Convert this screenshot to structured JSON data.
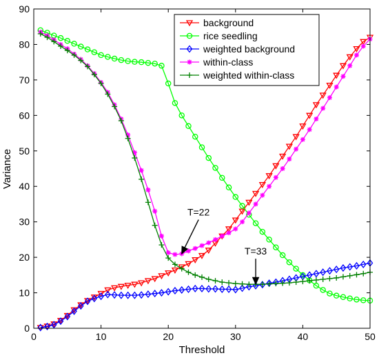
{
  "chart_data": {
    "type": "line",
    "xlabel": "Threshold",
    "ylabel": "Variance",
    "xlim": [
      0,
      50
    ],
    "ylim": [
      0,
      90
    ],
    "xticks": [
      0,
      10,
      20,
      30,
      40,
      50
    ],
    "yticks": [
      0,
      10,
      20,
      30,
      40,
      50,
      60,
      70,
      80,
      90
    ],
    "grid": false,
    "legend_position": "top-right",
    "x": [
      1,
      2,
      3,
      4,
      5,
      6,
      7,
      8,
      9,
      10,
      11,
      12,
      13,
      14,
      15,
      16,
      17,
      18,
      19,
      20,
      21,
      22,
      23,
      24,
      25,
      26,
      27,
      28,
      29,
      30,
      31,
      32,
      33,
      34,
      35,
      36,
      37,
      38,
      39,
      40,
      41,
      42,
      43,
      44,
      45,
      46,
      47,
      48,
      49,
      50
    ],
    "series": [
      {
        "name": "background",
        "color": "#ff0000",
        "marker": "triangle-down",
        "values": [
          0.2,
          0.6,
          1.2,
          2.2,
          3.6,
          5.2,
          6.6,
          7.8,
          8.8,
          9.8,
          10.8,
          11.4,
          11.8,
          12.1,
          12.4,
          12.8,
          13.4,
          14.0,
          14.8,
          15.6,
          16.4,
          17.3,
          18.2,
          19.3,
          20.5,
          22.0,
          24.0,
          26.0,
          28.0,
          30.5,
          33.0,
          35.5,
          38.0,
          40.5,
          43.0,
          45.8,
          48.5,
          51.3,
          54.0,
          57.0,
          60.0,
          63.0,
          65.7,
          68.5,
          71.3,
          74.0,
          76.5,
          78.8,
          80.8,
          82.0
        ]
      },
      {
        "name": "rice seedling",
        "color": "#00ff00",
        "marker": "circle",
        "values": [
          84.0,
          83.3,
          82.5,
          81.8,
          81.0,
          80.2,
          79.4,
          78.6,
          77.8,
          77.0,
          76.5,
          76.0,
          75.6,
          75.3,
          75.1,
          75.0,
          74.8,
          74.6,
          74.0,
          69.0,
          63.5,
          60.0,
          57.0,
          54.0,
          51.0,
          48.0,
          45.2,
          42.4,
          39.7,
          37.0,
          34.5,
          32.0,
          29.6,
          27.2,
          25.0,
          22.8,
          20.6,
          18.6,
          16.8,
          15.0,
          13.5,
          12.0,
          10.8,
          9.8,
          9.2,
          8.8,
          8.4,
          8.1,
          7.9,
          7.8
        ]
      },
      {
        "name": "weighted background",
        "color": "#0000ff",
        "marker": "diamond",
        "values": [
          0.2,
          0.5,
          1.0,
          2.0,
          3.3,
          4.8,
          6.3,
          7.6,
          8.4,
          9.0,
          9.5,
          9.4,
          9.3,
          9.3,
          9.3,
          9.4,
          9.6,
          9.8,
          10.0,
          10.3,
          10.6,
          10.8,
          11.0,
          11.2,
          11.2,
          11.1,
          11.1,
          11.0,
          11.0,
          10.9,
          11.3,
          11.7,
          12.0,
          12.3,
          12.7,
          13.0,
          13.4,
          13.8,
          14.2,
          14.6,
          15.0,
          15.4,
          15.8,
          16.2,
          16.6,
          17.0,
          17.3,
          17.6,
          18.0,
          18.4
        ]
      },
      {
        "name": "within-class",
        "color": "#ff00ff",
        "marker": "star",
        "values": [
          83.5,
          82.5,
          81.3,
          80.0,
          78.8,
          77.3,
          75.8,
          74.0,
          71.8,
          69.3,
          66.5,
          63.0,
          59.0,
          54.5,
          49.5,
          44.5,
          39.0,
          33.0,
          26.0,
          21.3,
          20.8,
          21.0,
          21.8,
          22.5,
          23.3,
          24.1,
          25.0,
          26.0,
          26.9,
          28.0,
          30.0,
          32.5,
          35.0,
          37.5,
          40.0,
          42.5,
          45.0,
          47.7,
          50.5,
          53.2,
          56.0,
          59.0,
          62.0,
          65.0,
          68.0,
          71.0,
          74.0,
          77.0,
          79.5,
          81.5
        ]
      },
      {
        "name": "weighted within-class",
        "color": "#008000",
        "marker": "plus",
        "values": [
          83.0,
          82.0,
          80.8,
          79.5,
          78.3,
          77.0,
          75.5,
          73.8,
          71.5,
          69.0,
          66.0,
          62.5,
          58.5,
          53.5,
          48.0,
          42.0,
          35.5,
          29.0,
          23.5,
          19.8,
          18.0,
          16.8,
          15.8,
          15.0,
          14.4,
          13.8,
          13.4,
          13.0,
          12.8,
          12.6,
          12.5,
          12.4,
          12.4,
          12.4,
          12.5,
          12.6,
          12.7,
          12.8,
          13.0,
          13.2,
          13.4,
          13.6,
          13.8,
          14.0,
          14.2,
          14.5,
          14.8,
          15.1,
          15.4,
          15.8
        ]
      }
    ],
    "annotations": [
      {
        "text": "T=22",
        "x": 22,
        "y": 21.0,
        "label_x": 24.5,
        "label_y": 31.0
      },
      {
        "text": "T=33",
        "x": 33,
        "y": 12.4,
        "label_x": 33.0,
        "label_y": 20.0
      }
    ]
  }
}
